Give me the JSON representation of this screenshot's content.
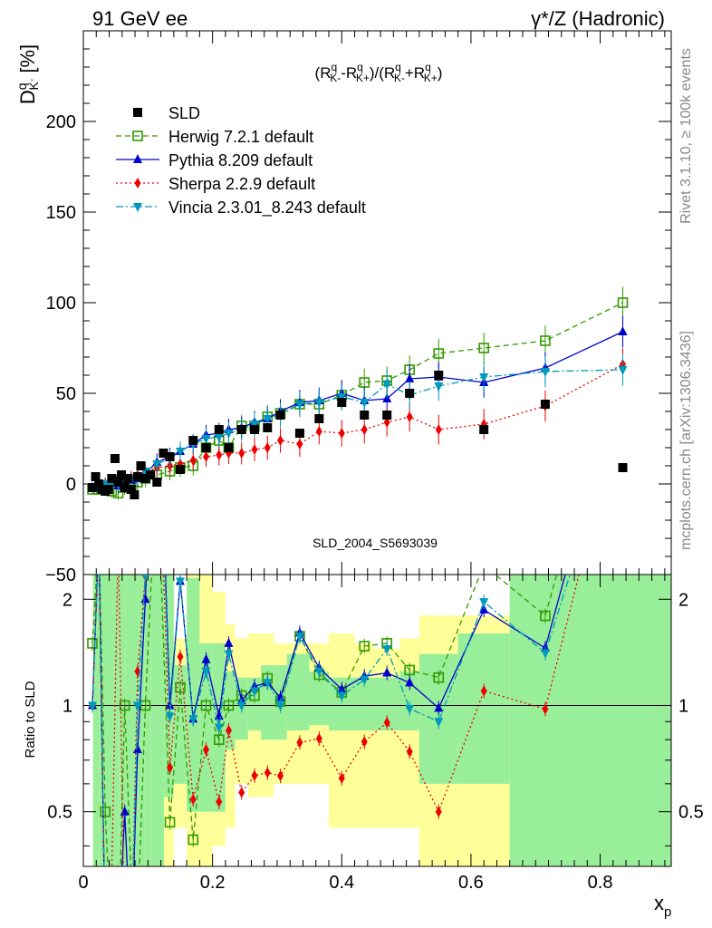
{
  "header": {
    "left": "91 GeV ee",
    "right": "γ*/Z (Hadronic)"
  },
  "side_text": {
    "rivet": "Rivet 3.1.10, ≥ 100k events",
    "mcplots": "mcplots.cern.ch [arXiv:1306.3436]"
  },
  "analysis_id": "SLD_2004_S5693039",
  "top_ylabel": {
    "sym": "D",
    "sup": "q",
    "sub": "K",
    "subsup": "-",
    "unit": "[%]"
  },
  "formula": "(R^q_K- - R^q_K+)/(R^q_K- + R^q_K+)",
  "ratio_ylabel": "Ratio to SLD",
  "xlabel": {
    "sym": "x",
    "sub": "p"
  },
  "chart_data": {
    "type": "line",
    "x_range": [
      0,
      0.91
    ],
    "top_y_range": [
      -50,
      250
    ],
    "top_y_ticks": [
      "-50",
      "0",
      "50",
      "100",
      "150",
      "200"
    ],
    "ratio_y_range": [
      0.35,
      2.35
    ],
    "ratio_y_ticks": [
      "0.5",
      "1",
      "2"
    ],
    "x_ticks": [
      "0",
      "0.2",
      "0.4",
      "0.6",
      "0.8"
    ],
    "data_series": {
      "name": "SLD",
      "color": "#000000",
      "x": [
        0.014,
        0.019,
        0.024,
        0.029,
        0.034,
        0.039,
        0.044,
        0.049,
        0.054,
        0.059,
        0.064,
        0.069,
        0.074,
        0.079,
        0.084,
        0.089,
        0.096,
        0.104,
        0.114,
        0.124,
        0.134,
        0.15,
        0.17,
        0.19,
        0.21,
        0.225,
        0.245,
        0.265,
        0.285,
        0.305,
        0.335,
        0.365,
        0.4,
        0.435,
        0.47,
        0.505,
        0.55,
        0.62,
        0.715,
        0.835
      ],
      "y": [
        -2,
        4,
        0,
        -3,
        -4,
        -3,
        3,
        14,
        1,
        5,
        -2,
        3,
        -3,
        -6,
        4,
        10,
        3,
        5,
        1,
        17,
        15,
        8,
        24,
        20,
        30,
        20,
        30,
        30,
        31,
        38,
        28,
        36,
        45,
        38,
        38,
        50,
        60,
        30,
        44,
        9
      ]
    },
    "series": [
      {
        "name": "Herwig 7.2.1 default",
        "color": "#339900",
        "marker": "open-square",
        "dash": "6,4",
        "x": [
          0.014,
          0.024,
          0.034,
          0.044,
          0.054,
          0.064,
          0.074,
          0.084,
          0.096,
          0.114,
          0.134,
          0.15,
          0.17,
          0.19,
          0.21,
          0.225,
          0.245,
          0.265,
          0.285,
          0.305,
          0.335,
          0.365,
          0.4,
          0.435,
          0.47,
          0.505,
          0.55,
          0.62,
          0.715,
          0.835
        ],
        "y": [
          -3,
          -3,
          -2,
          -4,
          -5,
          -2,
          -1,
          1,
          3,
          5,
          7,
          9,
          10,
          20,
          24,
          20,
          32,
          32,
          37,
          39,
          44,
          44,
          49,
          56,
          57,
          63,
          72,
          75,
          79,
          100
        ]
      },
      {
        "name": "Pythia 8.209 default",
        "color": "#0000cc",
        "marker": "triangle-up",
        "dash": "",
        "x": [
          0.014,
          0.024,
          0.034,
          0.044,
          0.054,
          0.064,
          0.074,
          0.084,
          0.096,
          0.114,
          0.134,
          0.15,
          0.17,
          0.19,
          0.21,
          0.225,
          0.245,
          0.265,
          0.285,
          0.305,
          0.335,
          0.365,
          0.4,
          0.435,
          0.47,
          0.505,
          0.55,
          0.62,
          0.715,
          0.835
        ],
        "y": [
          -2,
          -2,
          0,
          1,
          -1,
          -1,
          2,
          3,
          6,
          12,
          15,
          18,
          22,
          27,
          28,
          30,
          31,
          34,
          36,
          40,
          45,
          46,
          50,
          46,
          47,
          58,
          59,
          56,
          64,
          84
        ]
      },
      {
        "name": "Sherpa 2.2.9 default",
        "color": "#ee0000",
        "marker": "diamond",
        "dash": "2,3",
        "x": [
          0.014,
          0.024,
          0.034,
          0.044,
          0.054,
          0.064,
          0.074,
          0.084,
          0.096,
          0.114,
          0.134,
          0.15,
          0.17,
          0.19,
          0.21,
          0.225,
          0.245,
          0.265,
          0.285,
          0.305,
          0.335,
          0.365,
          0.4,
          0.435,
          0.47,
          0.505,
          0.55,
          0.62,
          0.715,
          0.835
        ],
        "y": [
          -2,
          -1,
          0,
          1,
          3,
          2,
          3,
          5,
          7,
          9,
          10,
          11,
          13,
          15,
          16,
          17,
          17,
          19,
          20,
          24,
          22,
          29,
          28,
          30,
          34,
          37,
          30,
          33,
          43,
          66
        ]
      },
      {
        "name": "Vincia 2.3.01_8.243 default",
        "color": "#0099bb",
        "marker": "triangle-down",
        "dash": "8,3,2,3",
        "x": [
          0.014,
          0.024,
          0.034,
          0.044,
          0.054,
          0.064,
          0.074,
          0.084,
          0.096,
          0.114,
          0.134,
          0.15,
          0.17,
          0.19,
          0.21,
          0.225,
          0.245,
          0.265,
          0.285,
          0.305,
          0.335,
          0.365,
          0.4,
          0.435,
          0.47,
          0.505,
          0.55,
          0.62,
          0.715,
          0.835
        ],
        "y": [
          -2,
          -2,
          0,
          -1,
          0,
          0,
          2,
          4,
          7,
          11,
          14,
          18,
          22,
          25,
          26,
          28,
          30,
          33,
          36,
          38,
          44,
          45,
          48,
          45,
          55,
          49,
          54,
          59,
          62,
          63
        ]
      }
    ],
    "ratio_band_x": [
      0.015,
      0.025,
      0.035,
      0.045,
      0.055,
      0.065,
      0.075,
      0.085,
      0.095,
      0.105,
      0.115,
      0.125,
      0.14,
      0.16,
      0.18,
      0.2,
      0.22,
      0.235,
      0.255,
      0.275,
      0.295,
      0.315,
      0.35,
      0.38,
      0.42,
      0.45,
      0.49,
      0.52,
      0.58,
      0.66,
      0.77,
      0.91
    ],
    "ratio_band_1sigma": [
      [
        0.3,
        2.5
      ],
      [
        0.3,
        2.5
      ],
      [
        0.3,
        2.5
      ],
      [
        0.3,
        2.5
      ],
      [
        0.3,
        2.5
      ],
      [
        0.3,
        2.5
      ],
      [
        0.3,
        2.5
      ],
      [
        0.3,
        2.5
      ],
      [
        0.3,
        2.5
      ],
      [
        0.3,
        2.5
      ],
      [
        0.3,
        2.5
      ],
      [
        0.55,
        2.5
      ],
      [
        0.6,
        1.3
      ],
      [
        0.5,
        2.3
      ],
      [
        0.5,
        1.5
      ],
      [
        0.5,
        1.5
      ],
      [
        0.75,
        1.25
      ],
      [
        0.8,
        1.2
      ],
      [
        0.85,
        1.2
      ],
      [
        0.8,
        1.3
      ],
      [
        0.8,
        1.3
      ],
      [
        0.85,
        1.4
      ],
      [
        0.88,
        1.25
      ],
      [
        0.85,
        1.2
      ],
      [
        0.85,
        1.2
      ],
      [
        0.85,
        1.2
      ],
      [
        0.85,
        1.25
      ],
      [
        0.6,
        1.4
      ],
      [
        0.6,
        1.6
      ],
      [
        0.35,
        2.5
      ],
      [
        0.35,
        2.5
      ]
    ],
    "ratio_band_2sigma": [
      [
        0.3,
        2.5
      ],
      [
        0.3,
        2.5
      ],
      [
        0.3,
        2.5
      ],
      [
        0.3,
        2.5
      ],
      [
        0.3,
        2.5
      ],
      [
        0.3,
        2.5
      ],
      [
        0.3,
        2.5
      ],
      [
        0.3,
        2.5
      ],
      [
        0.3,
        2.5
      ],
      [
        0.3,
        2.5
      ],
      [
        0.3,
        2.5
      ],
      [
        0.35,
        2.5
      ],
      [
        0.45,
        1.55
      ],
      [
        0.35,
        2.5
      ],
      [
        0.35,
        2.5
      ],
      [
        0.4,
        2.1
      ],
      [
        0.45,
        1.7
      ],
      [
        0.6,
        1.55
      ],
      [
        0.55,
        1.6
      ],
      [
        0.55,
        1.6
      ],
      [
        0.6,
        1.5
      ],
      [
        0.6,
        1.5
      ],
      [
        0.6,
        1.5
      ],
      [
        0.45,
        1.6
      ],
      [
        0.45,
        1.5
      ],
      [
        0.45,
        1.45
      ],
      [
        0.45,
        1.55
      ],
      [
        0.35,
        1.8
      ],
      [
        0.35,
        1.8
      ],
      [
        0.35,
        2.5
      ],
      [
        0.35,
        2.5
      ]
    ]
  }
}
